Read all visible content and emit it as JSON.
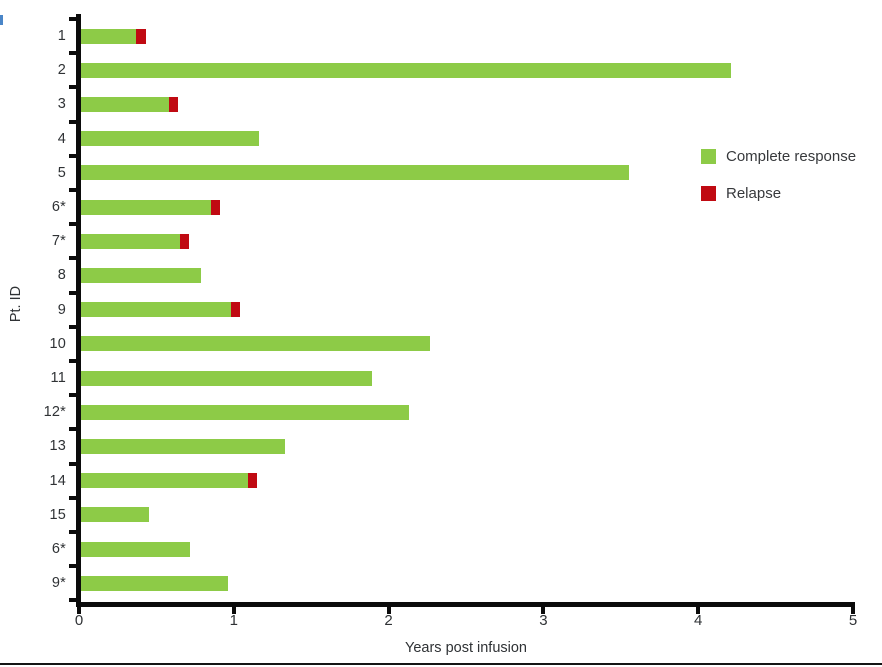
{
  "chart_data": {
    "type": "bar",
    "orientation": "horizontal",
    "xlabel": "Years post infusion",
    "ylabel": "Pt. ID",
    "xlim": [
      0,
      5
    ],
    "xticks": [
      0,
      1,
      2,
      3,
      4,
      5
    ],
    "xtick_labels": [
      "0",
      "1",
      "2",
      "3",
      "4",
      "5"
    ],
    "grid": false,
    "legend_position": "right",
    "legend": [
      {
        "label": "Complete response",
        "color": "#8DCB47"
      },
      {
        "label": "Relapse",
        "color": "#C00A12"
      }
    ],
    "rows": [
      {
        "id": "1",
        "complete_response": 0.37,
        "relapse_end": 0.43
      },
      {
        "id": "2",
        "complete_response": 4.21,
        "relapse_end": null
      },
      {
        "id": "3",
        "complete_response": 0.58,
        "relapse_end": 0.64
      },
      {
        "id": "4",
        "complete_response": 1.16,
        "relapse_end": null
      },
      {
        "id": "5",
        "complete_response": 3.55,
        "relapse_end": null
      },
      {
        "id": "6*",
        "complete_response": 0.85,
        "relapse_end": 0.91
      },
      {
        "id": "7*",
        "complete_response": 0.65,
        "relapse_end": 0.71
      },
      {
        "id": "8",
        "complete_response": 0.79,
        "relapse_end": null
      },
      {
        "id": "9",
        "complete_response": 0.98,
        "relapse_end": 1.04
      },
      {
        "id": "10",
        "complete_response": 2.27,
        "relapse_end": null
      },
      {
        "id": "11",
        "complete_response": 1.89,
        "relapse_end": null
      },
      {
        "id": "12*",
        "complete_response": 2.13,
        "relapse_end": null
      },
      {
        "id": "13",
        "complete_response": 1.33,
        "relapse_end": null
      },
      {
        "id": "14",
        "complete_response": 1.09,
        "relapse_end": 1.15
      },
      {
        "id": "15",
        "complete_response": 0.45,
        "relapse_end": null
      },
      {
        "id": "6*",
        "complete_response": 0.72,
        "relapse_end": null
      },
      {
        "id": "9*",
        "complete_response": 0.96,
        "relapse_end": null
      }
    ]
  }
}
